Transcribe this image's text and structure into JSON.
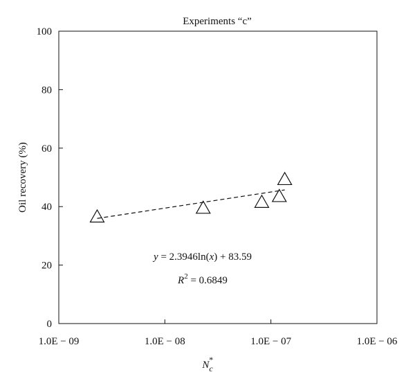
{
  "chart_data": {
    "type": "scatter",
    "title": "Experiments “c”",
    "ylabel": "Oil recovery (%)",
    "xlabel": {
      "base": "N",
      "sub": "c",
      "sup": "*"
    },
    "x_scale": "log",
    "xlim": [
      1e-09,
      1e-06
    ],
    "ylim": [
      0,
      100
    ],
    "x_ticks": [
      {
        "value": 1e-09,
        "label": "1.0E − 09"
      },
      {
        "value": 1e-08,
        "label": "1.0E − 08"
      },
      {
        "value": 1e-07,
        "label": "1.0E − 07"
      },
      {
        "value": 1e-06,
        "label": "1.0E − 06"
      }
    ],
    "y_ticks": [
      {
        "value": 0,
        "label": "0"
      },
      {
        "value": 20,
        "label": "20"
      },
      {
        "value": 40,
        "label": "40"
      },
      {
        "value": 60,
        "label": "60"
      },
      {
        "value": 80,
        "label": "80"
      },
      {
        "value": 100,
        "label": "100"
      }
    ],
    "grid": false,
    "marker": "open-triangle",
    "points": [
      {
        "x": 2.3e-09,
        "y": 36.5
      },
      {
        "x": 2.3e-08,
        "y": 39.5
      },
      {
        "x": 8.2e-08,
        "y": 41.5
      },
      {
        "x": 1.2e-07,
        "y": 43.5
      },
      {
        "x": 1.35e-07,
        "y": 49.3
      }
    ],
    "trendline": {
      "style": "dashed",
      "x_range": [
        2.3e-09,
        1.35e-07
      ],
      "coef_a": 2.3946,
      "coef_b": 83.59,
      "equation": {
        "lhs": "y",
        "rhs": " = 2.3946ln(",
        "var": "x",
        "tail": ") + 83.59"
      },
      "r2": {
        "base": "R",
        "sup": "2",
        "rhs": " = 0.6849"
      }
    }
  }
}
